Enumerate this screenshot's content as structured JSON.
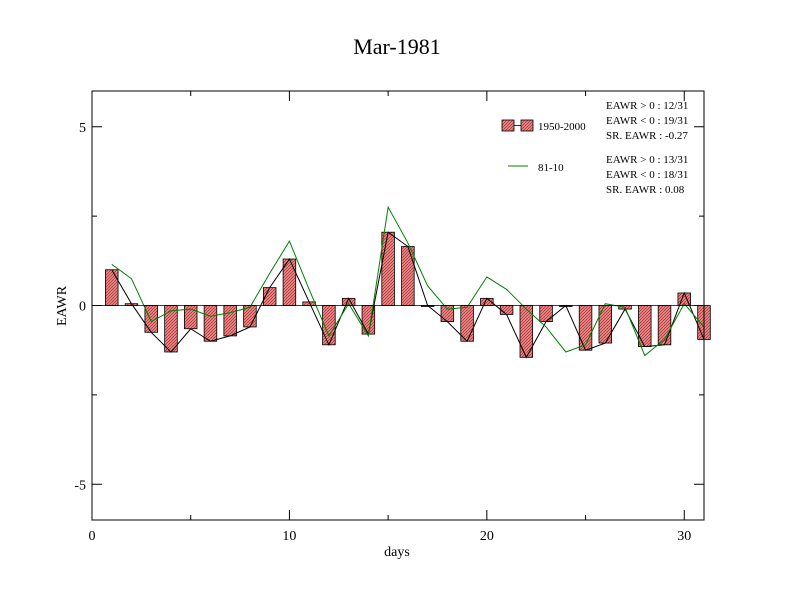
{
  "chart_data": {
    "type": "bar",
    "title": "Mar-1981",
    "xlabel": "days",
    "ylabel": "EAWR",
    "xlim": [
      0,
      31
    ],
    "ylim": [
      -6,
      6
    ],
    "x_ticks": [
      0,
      10,
      20,
      30
    ],
    "y_ticks": [
      -5,
      0,
      5
    ],
    "x_tick_labels": [
      "0",
      "10",
      "20",
      "30"
    ],
    "y_tick_labels": [
      "-5",
      "0",
      "5"
    ],
    "grid": false,
    "legend_position": "top-right",
    "x": [
      1,
      2,
      3,
      4,
      5,
      6,
      7,
      8,
      9,
      10,
      11,
      12,
      13,
      14,
      15,
      16,
      17,
      18,
      19,
      20,
      21,
      22,
      23,
      24,
      25,
      26,
      27,
      28,
      29,
      30,
      31
    ],
    "series": [
      {
        "name": "1950-2000",
        "kind": "bar",
        "fill": "#f08080",
        "stroke": "#000000",
        "values": [
          1.0,
          0.05,
          -0.75,
          -1.3,
          -0.65,
          -1.0,
          -0.85,
          -0.6,
          0.5,
          1.3,
          0.1,
          -1.1,
          0.2,
          -0.8,
          2.05,
          1.65,
          0.0,
          -0.45,
          -1.0,
          0.2,
          -0.25,
          -1.45,
          -0.45,
          0.0,
          -1.25,
          -1.05,
          -0.1,
          -1.15,
          -1.1,
          0.35,
          -0.95
        ]
      },
      {
        "name": "81-10",
        "kind": "line",
        "stroke": "#008000",
        "values": [
          1.15,
          0.75,
          -0.45,
          -0.15,
          -0.1,
          -0.3,
          -0.2,
          -0.05,
          0.9,
          1.8,
          0.45,
          -0.85,
          0.05,
          -0.85,
          2.75,
          1.75,
          0.55,
          -0.1,
          -0.05,
          0.8,
          0.45,
          -0.1,
          -0.6,
          -1.3,
          -1.1,
          0.05,
          -0.05,
          -1.4,
          -0.95,
          0.05,
          -0.6
        ]
      }
    ],
    "annotations": {
      "set1": [
        "EAWR > 0 : 12/31",
        "EAWR < 0 : 19/31",
        "SR. EAWR : -0.27"
      ],
      "set2": [
        "EAWR > 0 : 13/31",
        "EAWR < 0 : 18/31",
        "SR. EAWR :  0.08"
      ]
    }
  }
}
